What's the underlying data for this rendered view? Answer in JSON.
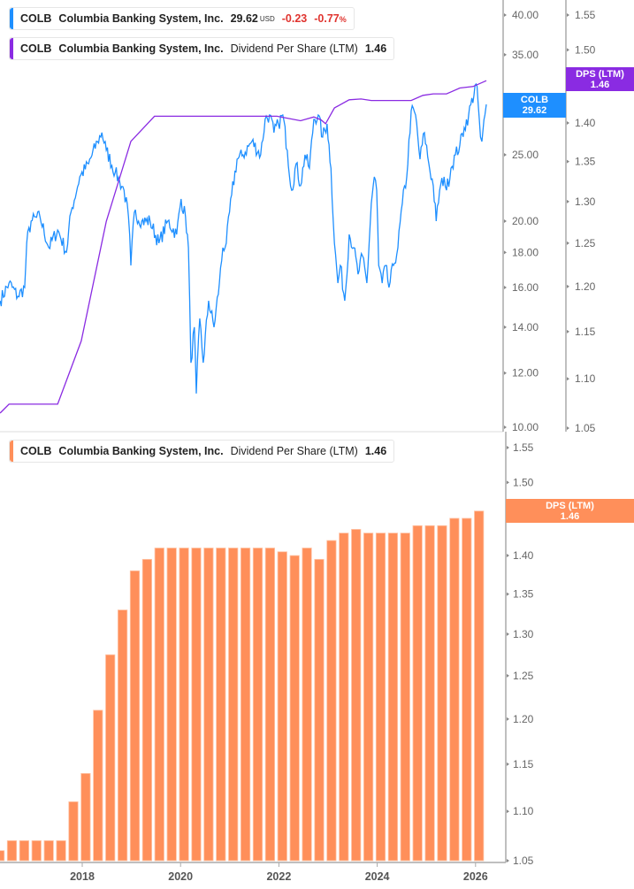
{
  "colors": {
    "price": "#1e8fff",
    "dps_line": "#8a2be2",
    "dps_bar": "#ff8f5a",
    "negative": "#e0342f"
  },
  "legend_price": {
    "ticker": "COLB",
    "company": "Columbia Banking System, Inc.",
    "price": "29.62",
    "currency": "USD",
    "change": "-0.23",
    "change_pct": "-0.77",
    "pct_sign": "%"
  },
  "legend_dps_top": {
    "ticker": "COLB",
    "company": "Columbia Banking System, Inc.",
    "metric": "Dividend Per Share (LTM)",
    "value": "1.46"
  },
  "legend_dps_bottom": {
    "ticker": "COLB",
    "company": "Columbia Banking System, Inc.",
    "metric": "Dividend Per Share (LTM)",
    "value": "1.46"
  },
  "tags": {
    "price": {
      "label": "COLB",
      "value": "29.62"
    },
    "dps_top": {
      "label": "DPS (LTM)",
      "value": "1.46"
    },
    "dps_bottom": {
      "label": "DPS (LTM)",
      "value": "1.46"
    }
  },
  "chart_data": [
    {
      "type": "line",
      "panel": "top",
      "x_unit": "year",
      "series": [
        {
          "name": "COLB",
          "axis": "left",
          "scale": "log",
          "ylim": [
            10,
            40
          ],
          "yticks": [
            "10.00",
            "12.00",
            "14.00",
            "16.00",
            "18.00",
            "20.00",
            "25.00",
            "30.00",
            "35.00",
            "40.00"
          ],
          "points": [
            [
              2016.33,
              15.3
            ],
            [
              2016.51,
              16.24
            ],
            [
              2016.69,
              15.53
            ],
            [
              2016.83,
              16.0
            ],
            [
              2016.87,
              18.57
            ],
            [
              2016.96,
              20.0
            ],
            [
              2017.14,
              20.3
            ],
            [
              2017.32,
              18.29
            ],
            [
              2017.5,
              19.41
            ],
            [
              2017.68,
              18.02
            ],
            [
              2017.77,
              20.6
            ],
            [
              2017.95,
              23.21
            ],
            [
              2018.13,
              24.26
            ],
            [
              2018.31,
              26.14
            ],
            [
              2018.4,
              26.94
            ],
            [
              2018.49,
              25.38
            ],
            [
              2018.67,
              23.56
            ],
            [
              2018.76,
              22.87
            ],
            [
              2018.85,
              22.19
            ],
            [
              2018.94,
              20.3
            ],
            [
              2018.99,
              17.23
            ],
            [
              2019.06,
              20.6
            ],
            [
              2019.21,
              20.0
            ],
            [
              2019.38,
              20.0
            ],
            [
              2019.56,
              18.57
            ],
            [
              2019.74,
              20.0
            ],
            [
              2019.92,
              19.13
            ],
            [
              2020.01,
              21.55
            ],
            [
              2020.1,
              20.3
            ],
            [
              2020.16,
              18.29
            ],
            [
              2020.21,
              12.42
            ],
            [
              2020.28,
              14.0
            ],
            [
              2020.32,
              11.2
            ],
            [
              2020.39,
              14.42
            ],
            [
              2020.46,
              12.42
            ],
            [
              2020.57,
              15.3
            ],
            [
              2020.68,
              14.0
            ],
            [
              2020.79,
              16.24
            ],
            [
              2020.86,
              18.29
            ],
            [
              2020.93,
              18.57
            ],
            [
              2021.04,
              21.86
            ],
            [
              2021.15,
              24.63
            ],
            [
              2021.27,
              25.0
            ],
            [
              2021.45,
              26.14
            ],
            [
              2021.63,
              25.0
            ],
            [
              2021.72,
              28.16
            ],
            [
              2021.81,
              28.58
            ],
            [
              2021.9,
              26.94
            ],
            [
              2021.99,
              27.74
            ],
            [
              2022.08,
              28.58
            ],
            [
              2022.17,
              25.38
            ],
            [
              2022.26,
              22.19
            ],
            [
              2022.35,
              24.26
            ],
            [
              2022.44,
              22.53
            ],
            [
              2022.53,
              25.0
            ],
            [
              2022.62,
              23.9
            ],
            [
              2022.71,
              28.16
            ],
            [
              2022.8,
              28.58
            ],
            [
              2022.89,
              26.53
            ],
            [
              2022.98,
              27.74
            ],
            [
              2023.06,
              23.9
            ],
            [
              2023.13,
              18.57
            ],
            [
              2023.2,
              16.24
            ],
            [
              2023.25,
              17.23
            ],
            [
              2023.34,
              15.3
            ],
            [
              2023.43,
              19.13
            ],
            [
              2023.52,
              18.29
            ],
            [
              2023.61,
              16.73
            ],
            [
              2023.7,
              17.8
            ],
            [
              2023.79,
              16.24
            ],
            [
              2023.88,
              21.23
            ],
            [
              2023.94,
              23.21
            ],
            [
              2023.99,
              22.19
            ],
            [
              2024.03,
              17.23
            ],
            [
              2024.1,
              16.24
            ],
            [
              2024.17,
              17.23
            ],
            [
              2024.24,
              16.0
            ],
            [
              2024.33,
              17.23
            ],
            [
              2024.42,
              18.29
            ],
            [
              2024.51,
              21.23
            ],
            [
              2024.6,
              23.21
            ],
            [
              2024.69,
              29.0
            ],
            [
              2024.78,
              28.58
            ],
            [
              2024.87,
              24.63
            ],
            [
              2024.96,
              26.94
            ],
            [
              2025.05,
              24.26
            ],
            [
              2025.14,
              22.53
            ],
            [
              2025.2,
              20.0
            ],
            [
              2025.27,
              22.19
            ],
            [
              2025.36,
              23.21
            ],
            [
              2025.41,
              22.19
            ],
            [
              2025.5,
              23.9
            ],
            [
              2025.59,
              25.0
            ],
            [
              2025.68,
              25.8
            ],
            [
              2025.77,
              27.4
            ],
            [
              2025.86,
              28.58
            ],
            [
              2026.01,
              31.72
            ],
            [
              2026.05,
              29.89
            ],
            [
              2026.1,
              26.53
            ],
            [
              2026.13,
              26.14
            ],
            [
              2026.19,
              28.58
            ],
            [
              2026.22,
              29.62
            ]
          ]
        },
        {
          "name": "DPS (LTM)",
          "axis": "right",
          "scale": "log",
          "ylim": [
            1.05,
            1.55
          ],
          "yticks": [
            "1.05",
            "1.10",
            "1.15",
            "1.20",
            "1.25",
            "1.30",
            "1.35",
            "1.40",
            "1.45",
            "1.50",
            "1.55"
          ],
          "points": [
            [
              2016.33,
              1.065
            ],
            [
              2016.51,
              1.074
            ],
            [
              2017.5,
              1.074
            ],
            [
              2017.98,
              1.14
            ],
            [
              2018.49,
              1.276
            ],
            [
              2018.99,
              1.376
            ],
            [
              2019.47,
              1.409
            ],
            [
              2021.96,
              1.409
            ],
            [
              2022.44,
              1.403
            ],
            [
              2022.71,
              1.408
            ],
            [
              2022.86,
              1.404
            ],
            [
              2022.95,
              1.399
            ],
            [
              2023.13,
              1.42
            ],
            [
              2023.43,
              1.431
            ],
            [
              2023.67,
              1.432
            ],
            [
              2023.88,
              1.43
            ],
            [
              2024.69,
              1.43
            ],
            [
              2024.93,
              1.437
            ],
            [
              2025.14,
              1.439
            ],
            [
              2025.41,
              1.439
            ],
            [
              2025.68,
              1.447
            ],
            [
              2025.95,
              1.449
            ],
            [
              2026.22,
              1.457
            ]
          ]
        }
      ]
    },
    {
      "type": "bar",
      "panel": "bottom",
      "series_name": "DPS (LTM)",
      "scale": "log",
      "ylim": [
        1.05,
        1.55
      ],
      "yticks": [
        "1.05",
        "1.10",
        "1.15",
        "1.20",
        "1.25",
        "1.30",
        "1.35",
        "1.40",
        "1.45",
        "1.50",
        "1.55"
      ],
      "xticks": [
        "2018",
        "2020",
        "2022",
        "2024",
        "2026"
      ],
      "categories": [
        "2016 Q2",
        "2016 Q3",
        "2016 Q4",
        "2017 Q1",
        "2017 Q2",
        "2017 Q3",
        "2017 Q4",
        "2018 Q1",
        "2018 Q2",
        "2018 Q3",
        "2018 Q4",
        "2019 Q1",
        "2019 Q2",
        "2019 Q3",
        "2019 Q4",
        "2020 Q1",
        "2020 Q2",
        "2020 Q3",
        "2020 Q4",
        "2021 Q1",
        "2021 Q2",
        "2021 Q3",
        "2021 Q4",
        "2022 Q1",
        "2022 Q2",
        "2022 Q3",
        "2022 Q4",
        "2023 Q1",
        "2023 Q2",
        "2023 Q3",
        "2023 Q4",
        "2024 Q1",
        "2024 Q2",
        "2024 Q3",
        "2024 Q4",
        "2025 Q1",
        "2025 Q2",
        "2025 Q3",
        "2025 Q4",
        "2026 Q1"
      ],
      "values": [
        1.06,
        1.07,
        1.07,
        1.07,
        1.07,
        1.07,
        1.11,
        1.14,
        1.21,
        1.275,
        1.33,
        1.38,
        1.395,
        1.41,
        1.41,
        1.41,
        1.41,
        1.41,
        1.41,
        1.41,
        1.41,
        1.41,
        1.41,
        1.405,
        1.4,
        1.41,
        1.395,
        1.42,
        1.43,
        1.435,
        1.43,
        1.43,
        1.43,
        1.43,
        1.44,
        1.44,
        1.44,
        1.45,
        1.45,
        1.46
      ]
    }
  ]
}
